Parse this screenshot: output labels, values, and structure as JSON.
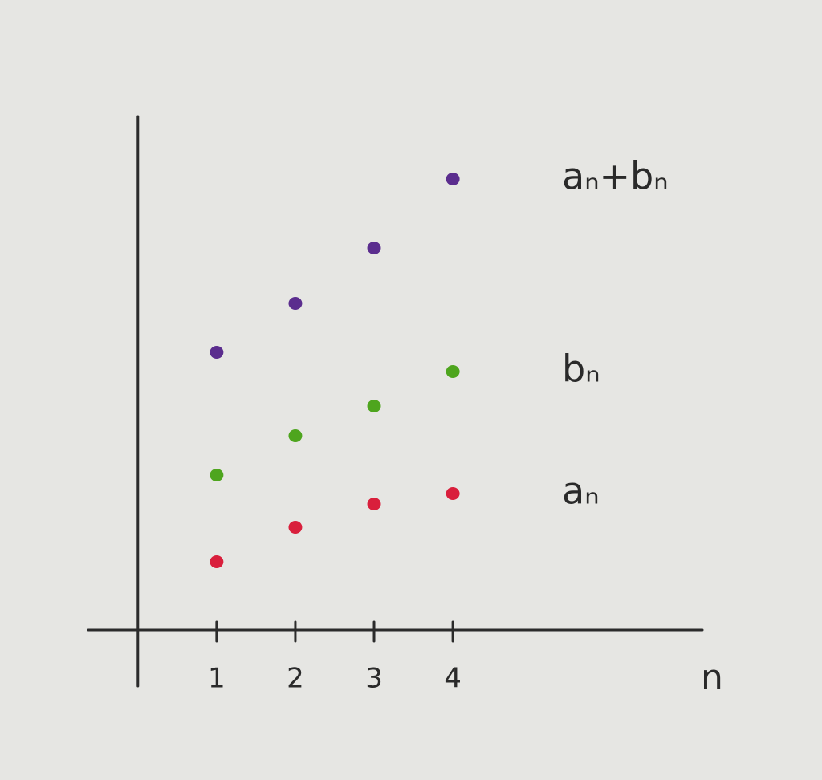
{
  "chart_data": {
    "type": "scatter",
    "x": [
      1,
      2,
      3,
      4
    ],
    "x_label": "n",
    "xlim": [
      -0.63,
      7.17
    ],
    "xticks": [
      1,
      2,
      3,
      4
    ],
    "ylim": [
      -0.7,
      6.4
    ],
    "series": [
      {
        "name": "aₙ+bₙ",
        "color": "#5b2d8e",
        "values": [
          3.46,
          4.07,
          4.76,
          5.62
        ]
      },
      {
        "name": "bₙ",
        "color": "#4ea51e",
        "values": [
          1.93,
          2.42,
          2.79,
          3.22
        ]
      },
      {
        "name": "aₙ",
        "color": "#d91f3c",
        "values": [
          0.85,
          1.28,
          1.57,
          1.7
        ]
      }
    ]
  }
}
